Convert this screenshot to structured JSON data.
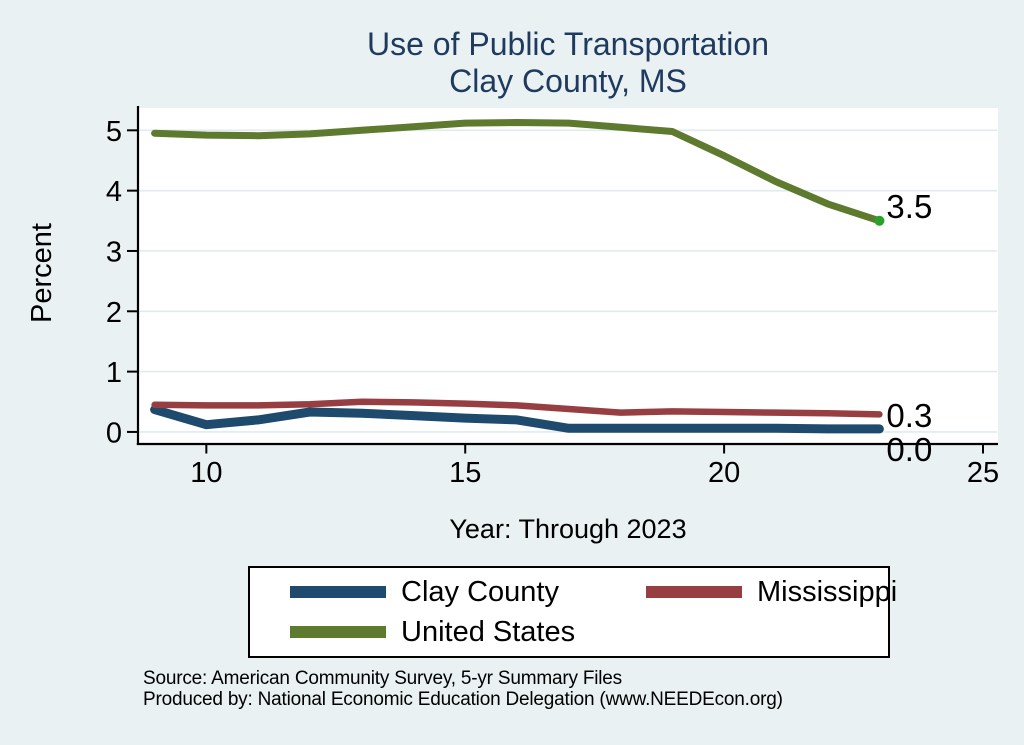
{
  "title": {
    "line1": "Use of Public Transportation",
    "line2": "Clay County, MS",
    "color": "#1f3a5f"
  },
  "source": {
    "line1": "Source: American Community Survey, 5-yr Summary Files",
    "line2": "Produced by: National Economic Education Delegation (www.NEEDEcon.org)"
  },
  "chart_data": {
    "type": "line",
    "title": "Use of Public Transportation",
    "subtitle": "Clay County, MS",
    "xlabel": "Year: Through 2023",
    "ylabel": "Percent",
    "x": [
      9,
      10,
      11,
      12,
      13,
      14,
      15,
      16,
      17,
      18,
      19,
      20,
      21,
      22,
      23
    ],
    "xticks": [
      10,
      15,
      20,
      25
    ],
    "yticks": [
      0,
      1,
      2,
      3,
      4,
      5
    ],
    "xlim": [
      8.68,
      25.29
    ],
    "ylim": [
      -0.2,
      5.37
    ],
    "grid": "horizontal",
    "grid_color": "#dfebee",
    "plot_background": "#ffffff",
    "page_background": "#e9f1f2",
    "legend_position": "bottom-center",
    "series": [
      {
        "name": "Clay County",
        "color": "#1e4a6d",
        "line_width": 9,
        "end_label": "0.0",
        "values": [
          0.37,
          0.12,
          0.2,
          0.33,
          0.31,
          0.27,
          0.23,
          0.2,
          0.06,
          0.06,
          0.06,
          0.06,
          0.06,
          0.05,
          0.05
        ]
      },
      {
        "name": "Mississippi",
        "color": "#973e42",
        "line_width": 6.5,
        "end_label": "0.3",
        "values": [
          0.45,
          0.44,
          0.44,
          0.46,
          0.5,
          0.49,
          0.47,
          0.44,
          0.38,
          0.32,
          0.34,
          0.33,
          0.32,
          0.31,
          0.29
        ]
      },
      {
        "name": "United States",
        "color": "#5d7a2e",
        "line_width": 7,
        "end_label": "3.5",
        "end_marker": true,
        "end_marker_color": "#2aa22a",
        "values": [
          4.95,
          4.92,
          4.91,
          4.94,
          5.0,
          5.06,
          5.12,
          5.13,
          5.12,
          5.05,
          4.98,
          4.58,
          4.15,
          3.78,
          3.5
        ]
      }
    ]
  }
}
